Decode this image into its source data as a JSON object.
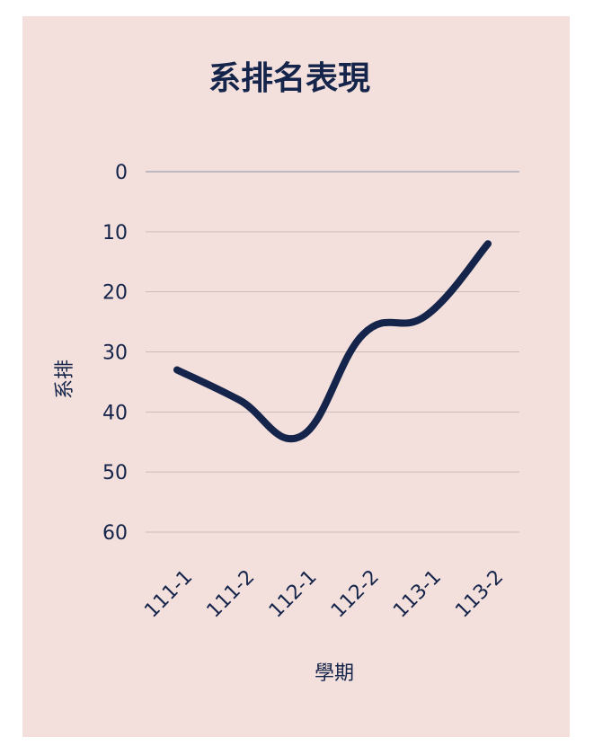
{
  "chart_data": {
    "type": "line",
    "title": "系排名表現",
    "xlabel": "學期",
    "ylabel": "系排",
    "categories": [
      "111-1",
      "111-2",
      "112-1",
      "112-2",
      "113-1",
      "113-2"
    ],
    "series": [
      {
        "values": [
          33,
          38,
          44,
          27,
          24,
          12
        ]
      }
    ],
    "ylim": [
      0,
      60
    ],
    "y_reversed": true,
    "y_ticks": [
      0,
      10,
      20,
      30,
      40,
      50,
      60
    ],
    "grid": true,
    "smooth": true,
    "line_color": "#15244a",
    "background_color": "#f3e0dc"
  }
}
